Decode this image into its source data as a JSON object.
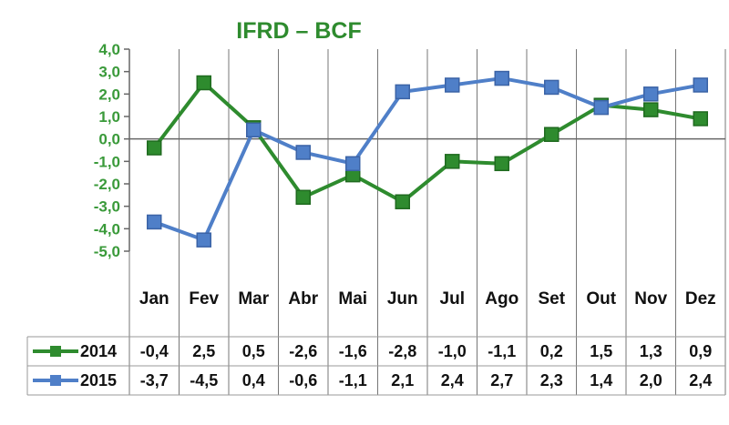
{
  "chart_data": {
    "type": "line",
    "title": "IFRD – BCF",
    "categories": [
      "Jan",
      "Fev",
      "Mar",
      "Abr",
      "Mai",
      "Jun",
      "Jul",
      "Ago",
      "Set",
      "Out",
      "Nov",
      "Dez"
    ],
    "series": [
      {
        "name": "2014",
        "color": "#2e8b2e",
        "values": [
          -0.4,
          2.5,
          0.5,
          -2.6,
          -1.6,
          -2.8,
          -1.0,
          -1.1,
          0.2,
          1.5,
          1.3,
          0.9
        ],
        "labels": [
          "-0,4",
          "2,5",
          "0,5",
          "-2,6",
          "-1,6",
          "-2,8",
          "-1,0",
          "-1,1",
          "0,2",
          "1,5",
          "1,3",
          "0,9"
        ]
      },
      {
        "name": "2015",
        "color": "#4f7fc8",
        "values": [
          -3.7,
          -4.5,
          0.4,
          -0.6,
          -1.1,
          2.1,
          2.4,
          2.7,
          2.3,
          1.4,
          2.0,
          2.4
        ],
        "labels": [
          "-3,7",
          "-4,5",
          "0,4",
          "-0,6",
          "-1,1",
          "2,1",
          "2,4",
          "2,7",
          "2,3",
          "1,4",
          "2,0",
          "2,4"
        ]
      }
    ],
    "ylim": [
      -5,
      4
    ],
    "yticks": [
      4,
      3,
      2,
      1,
      0,
      -1,
      -2,
      -3,
      -4,
      -5
    ],
    "ytick_labels": [
      "4,0",
      "3,0",
      "2,0",
      "1,0",
      "0,0",
      "-1,0",
      "-2,0",
      "-3,0",
      "-4,0",
      "-5,0"
    ],
    "grid": false,
    "legend": "data-table"
  }
}
